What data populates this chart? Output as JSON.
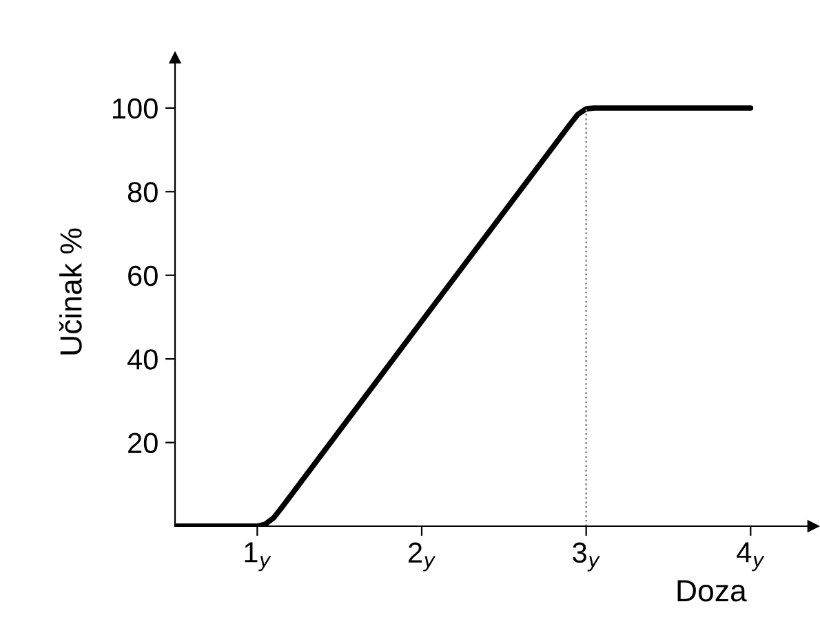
{
  "chart_data": {
    "type": "line",
    "xlabel": "Doza",
    "ylabel": "Učinak %",
    "x": [
      0.5,
      1.0,
      1.05,
      1.1,
      1.15,
      2.0,
      2.9,
      2.95,
      3.0,
      3.05,
      4.0
    ],
    "series": [
      {
        "color": "#000000",
        "values": [
          0,
          0,
          0.5,
          2,
          4.5,
          49,
          96,
          98.5,
          99.8,
          100,
          100
        ]
      }
    ],
    "xlim": [
      0.5,
      4.38
    ],
    "ylim": [
      0,
      112
    ],
    "xticks": [
      {
        "value": 1,
        "label": "1$_{y}$"
      },
      {
        "value": 2,
        "label": "2$_{y}$"
      },
      {
        "value": 3,
        "label": "3$_{y}$"
      },
      {
        "value": 4,
        "label": "4$_{y}$"
      }
    ],
    "yticks": [
      20,
      40,
      60,
      80,
      100
    ],
    "ref_lines": [
      {
        "axis": "x",
        "value": 3,
        "color": "#808080",
        "line_style": "dotted"
      }
    ],
    "grid": false,
    "legend": false,
    "marker": "none",
    "line_style": "solid"
  }
}
